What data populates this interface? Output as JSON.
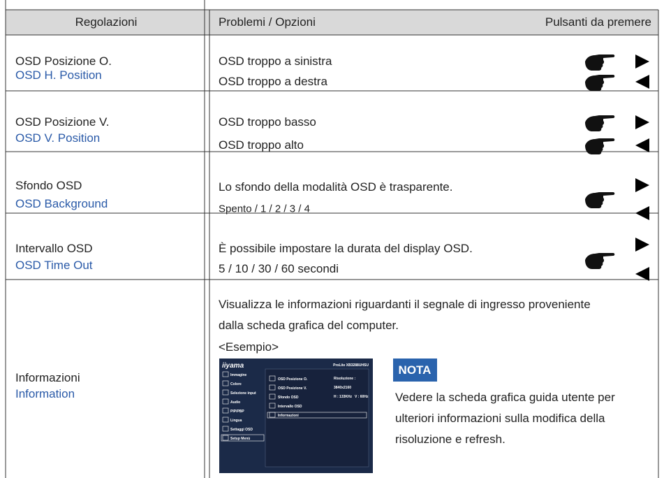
{
  "table": {
    "header": [
      "Regolazioni",
      "Problemi / Opzioni",
      "Pulsanti da premere"
    ],
    "rows": [
      {
        "setting": "OSD Posizione O.",
        "setting_en": "OSD H. Position",
        "options": [
          "OSD troppo a sinistra",
          "OSD troppo a destra"
        ]
      },
      {
        "setting": "OSD Posizione V.",
        "setting_en": "OSD V. Position",
        "options": [
          "OSD troppo basso",
          "OSD troppo alto"
        ]
      },
      {
        "setting": "Sfondo OSD",
        "setting_en": "OSD Background",
        "options": [
          "Lo sfondo della modalità OSD è trasparente.",
          "Spento / 1 / 2 / 3 / 4"
        ]
      },
      {
        "setting": "Intervallo OSD",
        "setting_en": "OSD Time Out",
        "options": [
          "È possibile impostare la durata del display OSD.",
          "5 / 10 / 30 / 60 secondi"
        ]
      }
    ],
    "information": {
      "setting": "Informazioni",
      "setting_en": "Information",
      "description": [
        "Visualizza le informazioni riguardanti il segnale di ingresso proveniente",
        "dalla scheda grafica del computer."
      ],
      "example": "<Esempio>",
      "note_title": "NOTA",
      "note": [
        "Vedere la scheda grafica guida utente per",
        "ulteriori informazioni sulla modifica della",
        "risoluzione e refresh."
      ],
      "osd": {
        "brand": "iiyama",
        "model": "ProLite XB3288UHSU",
        "menu": [
          "Immagine",
          "Colore",
          "Selezione input",
          "Audio",
          "PIP/PBP",
          "Lingua",
          "Settaggi OSD",
          "Setup Menù"
        ],
        "submenu": [
          "OSD Posizione O.",
          "OSD Posizione V.",
          "Sfondo OSD",
          "Intervallo OSD",
          "Informazioni"
        ],
        "info": [
          "Risoluzione :",
          "3840x2160",
          "H : 133KHz",
          "V : 60Hz"
        ]
      }
    }
  }
}
